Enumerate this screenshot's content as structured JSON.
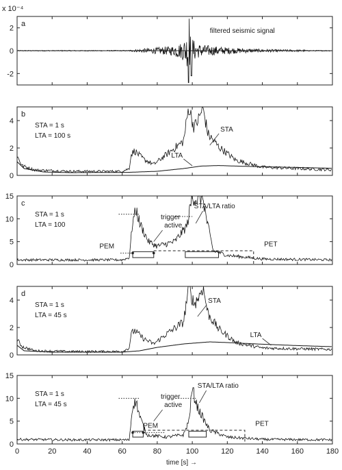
{
  "chart_data": {
    "type": "line",
    "x_range": [
      0,
      180
    ],
    "xticks": [
      0,
      20,
      40,
      60,
      80,
      100,
      120,
      140,
      160,
      180
    ],
    "xlabel": "time [s] →",
    "panels": [
      {
        "id": "a",
        "label": "a",
        "kind": "seismic",
        "y_exponent": "x 10⁻⁴",
        "ylim": [
          -3,
          3
        ],
        "yticks": [
          "2",
          "0",
          "-2"
        ],
        "ytick_values": [
          2,
          0,
          -2
        ],
        "annotations": [
          {
            "key": "filtered",
            "text": "filtered seismic signal"
          }
        ],
        "series": [
          {
            "name": "",
            "event_start": 63,
            "peak_time": 98,
            "peak_amp": 2.8,
            "event_end": 165
          }
        ]
      },
      {
        "id": "b",
        "label": "b",
        "kind": "sta_lta",
        "ylim": [
          0,
          5
        ],
        "yticks": [
          "4",
          "2",
          "0"
        ],
        "ytick_values": [
          4,
          2,
          0
        ],
        "params": [
          "STA = 1 s",
          "LTA = 100 s"
        ],
        "annotations": [
          {
            "key": "sta",
            "text": "STA",
            "x": 116,
            "y": 3.2
          },
          {
            "key": "lta",
            "text": "LTA",
            "x": 88,
            "y": 1.3
          }
        ],
        "series": [
          {
            "name": "STA",
            "points": [
              [
                0,
                1.4
              ],
              [
                3,
                0.7
              ],
              [
                10,
                0.4
              ],
              [
                30,
                0.3
              ],
              [
                60,
                0.3
              ],
              [
                64,
                0.5
              ],
              [
                65,
                1.5
              ],
              [
                67,
                1.8
              ],
              [
                72,
                1.2
              ],
              [
                78,
                0.8
              ],
              [
                85,
                1.5
              ],
              [
                95,
                2.5
              ],
              [
                98,
                5.0
              ],
              [
                101,
                3.5
              ],
              [
                104,
                4.2
              ],
              [
                106,
                5.0
              ],
              [
                109,
                3.0
              ],
              [
                115,
                2.1
              ],
              [
                125,
                1.1
              ],
              [
                140,
                0.6
              ],
              [
                160,
                0.5
              ],
              [
                180,
                0.4
              ]
            ]
          },
          {
            "name": "LTA",
            "points": [
              [
                0,
                1.0
              ],
              [
                4,
                0.5
              ],
              [
                15,
                0.25
              ],
              [
                30,
                0.2
              ],
              [
                63,
                0.22
              ],
              [
                80,
                0.3
              ],
              [
                95,
                0.5
              ],
              [
                105,
                0.68
              ],
              [
                115,
                0.72
              ],
              [
                130,
                0.66
              ],
              [
                160,
                0.58
              ],
              [
                180,
                0.52
              ]
            ]
          }
        ]
      },
      {
        "id": "c",
        "label": "c",
        "kind": "ratio",
        "ylim": [
          0,
          15
        ],
        "yticks": [
          "15",
          "10",
          "5",
          "0"
        ],
        "ytick_values": [
          15,
          10,
          5,
          0
        ],
        "params": [
          "STA = 1 s",
          "LTA = 100"
        ],
        "annotations": [
          {
            "key": "ratio",
            "text": "STA/LTA ratio"
          },
          {
            "key": "trigger1",
            "text": "trigger"
          },
          {
            "key": "trigger2",
            "text": "active"
          },
          {
            "key": "pem",
            "text": "PEM"
          },
          {
            "key": "pet",
            "text": "PET"
          }
        ],
        "series": [
          {
            "name": "STA/LTA ratio",
            "points": [
              [
                0,
                1
              ],
              [
                10,
                1
              ],
              [
                60,
                1
              ],
              [
                64,
                1.5
              ],
              [
                66,
                9.5
              ],
              [
                68,
                12
              ],
              [
                70,
                9
              ],
              [
                75,
                5
              ],
              [
                80,
                4
              ],
              [
                90,
                5
              ],
              [
                97,
                8.5
              ],
              [
                100,
                15
              ],
              [
                103,
                14
              ],
              [
                106,
                15
              ],
              [
                108,
                10
              ],
              [
                112,
                3
              ],
              [
                120,
                2
              ],
              [
                140,
                1.2
              ],
              [
                180,
                1
              ]
            ]
          }
        ],
        "markers": {
          "trigger_on": [
            66,
            96
          ],
          "trigger_off": [
            78,
            115
          ],
          "pem": 63,
          "pet": 135,
          "peak_level": [
            11,
            10.5
          ],
          "pet_level": 3
        }
      },
      {
        "id": "d",
        "label": "d",
        "kind": "sta_lta",
        "ylim": [
          0,
          5
        ],
        "yticks": [
          "4",
          "2",
          "0"
        ],
        "ytick_values": [
          4,
          2,
          0
        ],
        "params": [
          "STA = 1 s",
          "LTA = 45 s"
        ],
        "annotations": [
          {
            "key": "sta",
            "text": "STA",
            "x": 109,
            "y": 3.8
          },
          {
            "key": "lta",
            "text": "LTA",
            "x": 133,
            "y": 1.3
          }
        ],
        "series": [
          {
            "name": "STA",
            "points": [
              [
                0,
                1.1
              ],
              [
                3,
                0.6
              ],
              [
                10,
                0.3
              ],
              [
                30,
                0.25
              ],
              [
                60,
                0.25
              ],
              [
                64,
                0.5
              ],
              [
                65,
                1.5
              ],
              [
                67,
                1.8
              ],
              [
                72,
                1.2
              ],
              [
                78,
                0.8
              ],
              [
                85,
                1.5
              ],
              [
                95,
                2.4
              ],
              [
                98,
                5.0
              ],
              [
                101,
                3.7
              ],
              [
                104,
                4.3
              ],
              [
                106,
                5.0
              ],
              [
                109,
                3.0
              ],
              [
                115,
                1.9
              ],
              [
                125,
                0.9
              ],
              [
                140,
                0.5
              ],
              [
                160,
                0.45
              ],
              [
                180,
                0.4
              ]
            ]
          },
          {
            "name": "LTA",
            "points": [
              [
                0,
                0.7
              ],
              [
                4,
                0.3
              ],
              [
                20,
                0.2
              ],
              [
                60,
                0.2
              ],
              [
                70,
                0.3
              ],
              [
                80,
                0.55
              ],
              [
                95,
                0.8
              ],
              [
                110,
                0.95
              ],
              [
                120,
                0.9
              ],
              [
                140,
                0.78
              ],
              [
                160,
                0.68
              ],
              [
                180,
                0.6
              ]
            ]
          }
        ]
      },
      {
        "id": "e",
        "label": "",
        "kind": "ratio",
        "ylim": [
          0,
          15
        ],
        "yticks": [
          "15",
          "10",
          "5",
          "0"
        ],
        "ytick_values": [
          15,
          10,
          5,
          0
        ],
        "params": [
          "STA = 1 s",
          "LTA = 45 s"
        ],
        "annotations": [
          {
            "key": "ratio",
            "text": "STA/LTA ratio"
          },
          {
            "key": "trigger1",
            "text": "trigger"
          },
          {
            "key": "trigger2",
            "text": "active"
          },
          {
            "key": "pem",
            "text": "PEM"
          },
          {
            "key": "pet",
            "text": "PET"
          }
        ],
        "series": [
          {
            "name": "STA/LTA ratio",
            "points": [
              [
                0,
                1
              ],
              [
                30,
                0.9
              ],
              [
                64,
                0.9
              ],
              [
                66,
                8.5
              ],
              [
                68,
                9.3
              ],
              [
                70,
                6
              ],
              [
                74,
                2
              ],
              [
                85,
                1.5
              ],
              [
                95,
                2
              ],
              [
                98,
                5
              ],
              [
                100,
                12
              ],
              [
                103,
                8
              ],
              [
                107,
                5
              ],
              [
                110,
                3
              ],
              [
                120,
                1.5
              ],
              [
                140,
                1
              ],
              [
                180,
                0.9
              ]
            ]
          }
        ],
        "markers": {
          "trigger_on": [
            66,
            98
          ],
          "trigger_off": [
            72,
            108
          ],
          "pem": 88,
          "pet": 130,
          "peak_level": [
            10,
            10
          ],
          "pet_level": 3
        }
      }
    ]
  }
}
